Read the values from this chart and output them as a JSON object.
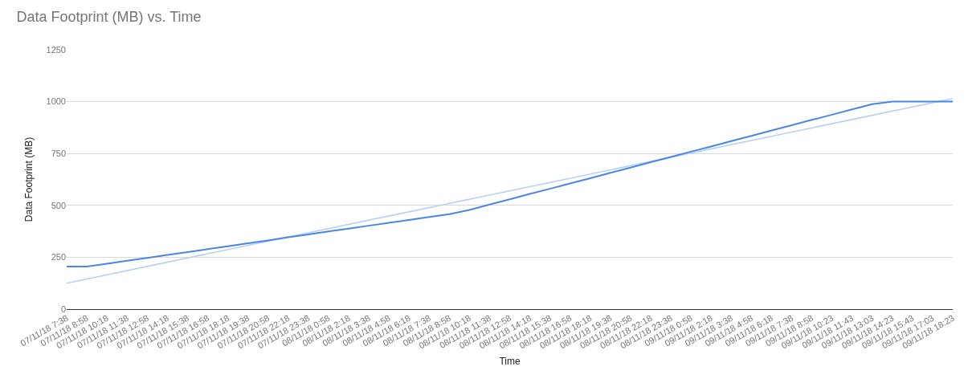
{
  "chart_data": {
    "type": "line",
    "title": "Data Footprint (MB) vs. Time",
    "xlabel": "Time",
    "ylabel": "Data Footprint (MB)",
    "categories": [
      "07/11/18 7:38",
      "07/11/18 8:58",
      "07/11/18 10:18",
      "07/11/18 11:38",
      "07/11/18 12:58",
      "07/11/18 14:18",
      "07/11/18 15:38",
      "07/11/18 16:58",
      "07/11/18 18:18",
      "07/11/18 19:38",
      "07/11/18 20:58",
      "07/11/18 22:18",
      "07/11/18 23:38",
      "08/11/18 0:58",
      "08/11/18 2:18",
      "08/11/18 3:38",
      "08/11/18 4:58",
      "08/11/18 6:18",
      "08/11/18 7:38",
      "08/11/18 8:58",
      "08/11/18 10:18",
      "08/11/18 11:38",
      "08/11/18 12:58",
      "08/11/18 14:18",
      "08/11/18 15:38",
      "08/11/18 16:58",
      "08/11/18 18:18",
      "08/11/18 19:38",
      "08/11/18 20:58",
      "08/11/18 22:18",
      "08/11/18 23:38",
      "09/11/18 0:58",
      "09/11/18 2:18",
      "09/11/18 3:38",
      "09/11/18 4:58",
      "09/11/18 6:18",
      "09/11/18 7:38",
      "09/11/18 8:58",
      "09/11/18 10:23",
      "09/11/18 11:43",
      "09/11/18 13:03",
      "09/11/18 14:23",
      "09/11/18 15:43",
      "09/11/18 17:03",
      "09/11/18 18:23"
    ],
    "series": [
      {
        "color": "#4a86e8",
        "values": [
          205,
          205,
          219,
          233,
          247,
          261,
          275,
          289,
          303,
          317,
          331,
          346,
          360,
          374,
          388,
          402,
          416,
          430,
          444,
          458,
          478,
          504,
          529,
          555,
          580,
          606,
          631,
          657,
          682,
          708,
          733,
          759,
          784,
          810,
          835,
          861,
          886,
          912,
          937,
          963,
          988,
          1000,
          1000,
          1000,
          1000
        ]
      },
      {
        "type": "line",
        "color": "#b7cff5",
        "x": [
          "07/11/18 7:38",
          "09/11/18 18:23"
        ],
        "values": [
          125,
          1015
        ]
      }
    ],
    "ylim": [
      0,
      1250
    ],
    "yticks": [
      0,
      250,
      500,
      750,
      1000,
      1250
    ],
    "grid": "y",
    "marker": "none",
    "line_style": "solid"
  }
}
